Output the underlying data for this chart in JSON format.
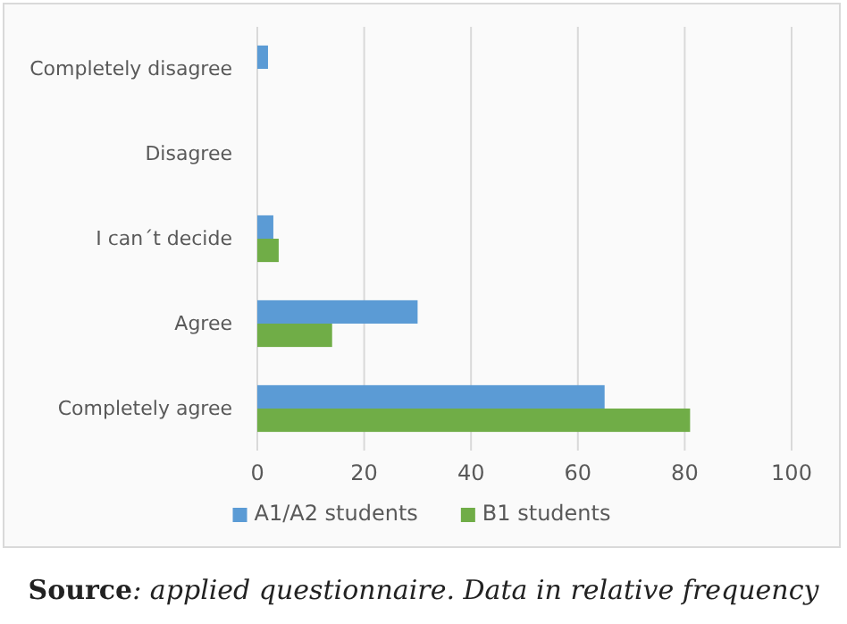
{
  "chart_data": {
    "type": "bar",
    "orientation": "horizontal",
    "categories": [
      "Completely disagree",
      "Disagree",
      "I can´t decide",
      "Agree",
      "Completely agree"
    ],
    "series": [
      {
        "name": "A1/A2 students",
        "color": "#5b9bd5",
        "values": [
          2,
          0,
          3,
          30,
          65
        ]
      },
      {
        "name": "B1 students",
        "color": "#70ad47",
        "values": [
          0,
          0,
          4,
          14,
          81
        ]
      }
    ],
    "xlim": [
      0,
      100
    ],
    "xticks": [
      0,
      20,
      40,
      60,
      80,
      100
    ],
    "grid": "x",
    "legend": "bottom",
    "annotations": [
      "Source: applied questionnaire. Data in relative frequency"
    ]
  }
}
